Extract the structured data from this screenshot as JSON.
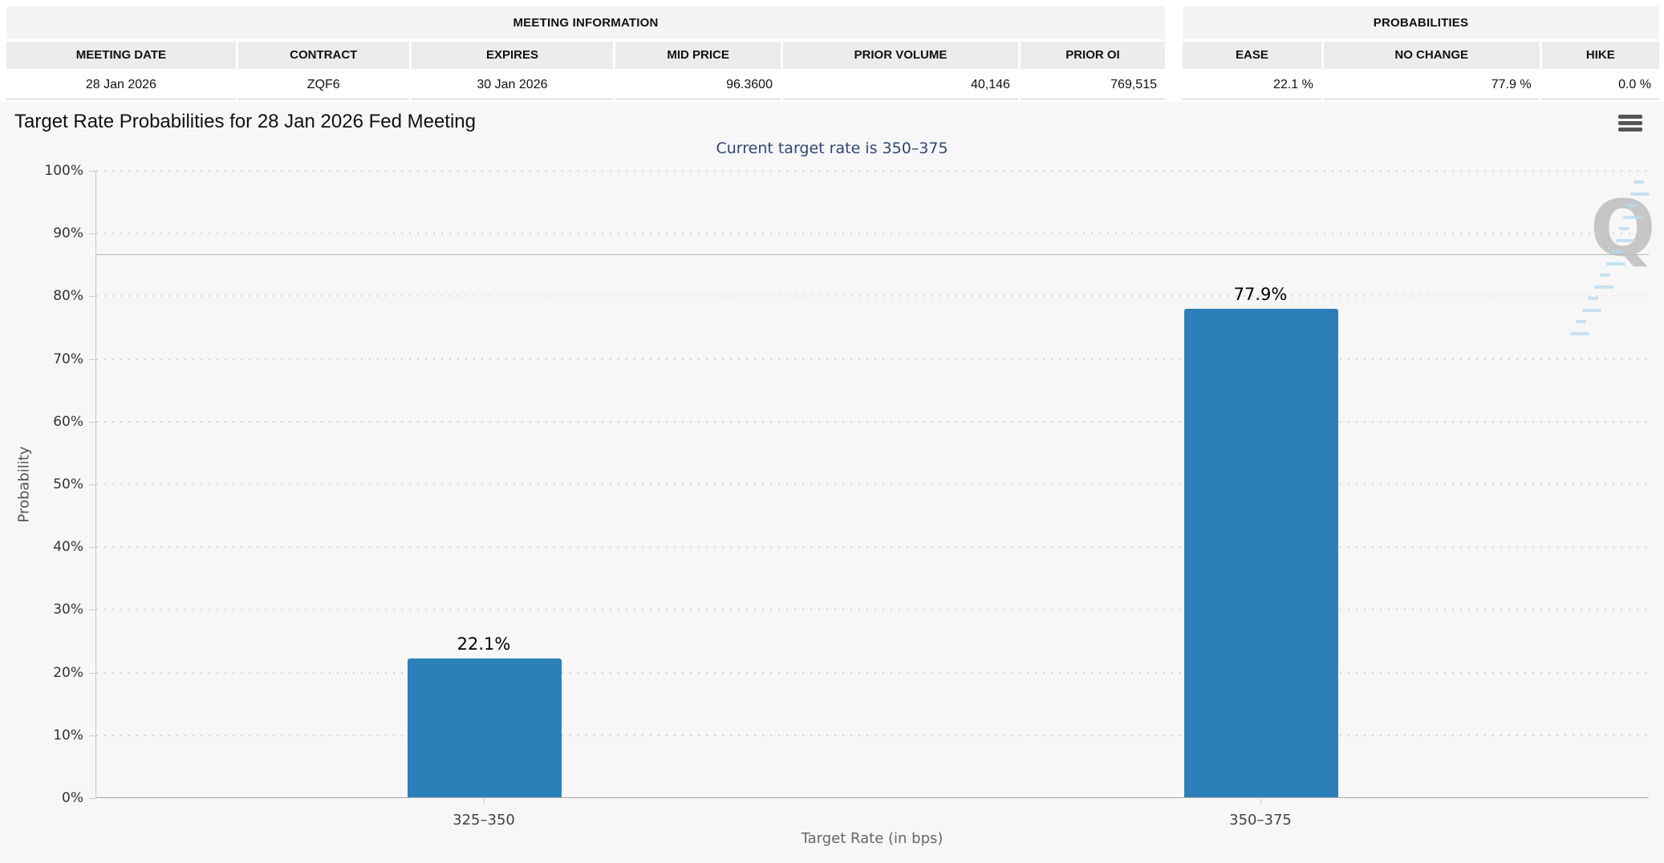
{
  "meeting_information": {
    "title": "MEETING INFORMATION",
    "columns": [
      "MEETING DATE",
      "CONTRACT",
      "EXPIRES",
      "MID PRICE",
      "PRIOR VOLUME",
      "PRIOR OI"
    ],
    "values": [
      "28 Jan 2026",
      "ZQF6",
      "30 Jan 2026",
      "96.3600",
      "40,146",
      "769,515"
    ]
  },
  "probabilities": {
    "title": "PROBABILITIES",
    "columns": [
      "EASE",
      "NO CHANGE",
      "HIKE"
    ],
    "values": [
      "22.1 %",
      "77.9 %",
      "0.0 %"
    ]
  },
  "chart": {
    "title": "Target Rate Probabilities for 28 Jan 2026 Fed Meeting",
    "subtitle": "Current target rate is 350–375",
    "menu_icon": "hamburger-icon",
    "watermark_letter": "Q"
  },
  "chart_data": {
    "type": "bar",
    "title": "Target Rate Probabilities for 28 Jan 2026 Fed Meeting",
    "subtitle": "Current target rate is 350–375",
    "categories": [
      "325–350",
      "350–375"
    ],
    "values": [
      22.1,
      77.9
    ],
    "value_labels": [
      "22.1%",
      "77.9%"
    ],
    "xlabel": "Target Rate (in bps)",
    "ylabel": "Probability",
    "ylim": [
      0,
      100
    ],
    "ytick_step": 10,
    "ytick_suffix": "%",
    "grid": "dotted-horizontal",
    "legend": "none",
    "reference_line": 86.7,
    "bar_color": "#2b80ba",
    "subtitle_color": "#2e4677"
  }
}
